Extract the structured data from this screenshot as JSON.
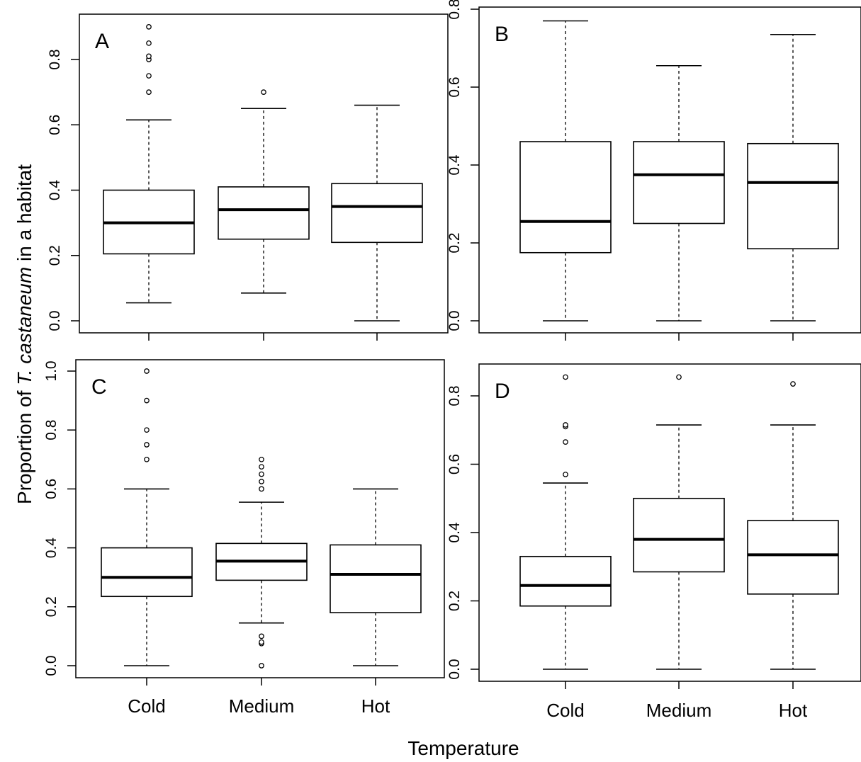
{
  "chart_data": {
    "type": "boxplot",
    "ylabel": {
      "before": "Proportion of ",
      "italic": "T. castaneum",
      "after": " in a habitat"
    },
    "xlabel": "Temperature",
    "categories": [
      "Cold",
      "Medium",
      "Hot"
    ],
    "panels": [
      {
        "id": "A",
        "label": "A",
        "ylim": [
          0,
          0.9
        ],
        "yticks": [
          "0.0",
          "0.2",
          "0.4",
          "0.6",
          "0.8"
        ],
        "show_category_labels": false,
        "boxes": [
          {
            "category": "Cold",
            "whisker_low": 0.055,
            "q1": 0.205,
            "median": 0.3,
            "q3": 0.4,
            "whisker_high": 0.615,
            "outliers": [
              0.7,
              0.75,
              0.8,
              0.81,
              0.85,
              0.9
            ]
          },
          {
            "category": "Medium",
            "whisker_low": 0.085,
            "q1": 0.25,
            "median": 0.34,
            "q3": 0.41,
            "whisker_high": 0.65,
            "outliers": [
              0.7
            ]
          },
          {
            "category": "Hot",
            "whisker_low": 0.0,
            "q1": 0.24,
            "median": 0.35,
            "q3": 0.42,
            "whisker_high": 0.66,
            "outliers": []
          }
        ]
      },
      {
        "id": "B",
        "label": "B",
        "ylim": [
          0,
          0.8
        ],
        "yticks": [
          "0.0",
          "0.2",
          "0.4",
          "0.6",
          "0.8"
        ],
        "show_category_labels": false,
        "boxes": [
          {
            "category": "Cold",
            "whisker_low": 0.0,
            "q1": 0.175,
            "median": 0.255,
            "q3": 0.46,
            "whisker_high": 0.77,
            "outliers": []
          },
          {
            "category": "Medium",
            "whisker_low": 0.0,
            "q1": 0.25,
            "median": 0.375,
            "q3": 0.46,
            "whisker_high": 0.655,
            "outliers": []
          },
          {
            "category": "Hot",
            "whisker_low": 0.0,
            "q1": 0.185,
            "median": 0.355,
            "q3": 0.455,
            "whisker_high": 0.735,
            "outliers": []
          }
        ]
      },
      {
        "id": "C",
        "label": "C",
        "ylim": [
          0,
          1.0
        ],
        "yticks": [
          "0.0",
          "0.2",
          "0.4",
          "0.6",
          "0.8",
          "1.0"
        ],
        "show_category_labels": true,
        "boxes": [
          {
            "category": "Cold",
            "whisker_low": 0.0,
            "q1": 0.235,
            "median": 0.3,
            "q3": 0.4,
            "whisker_high": 0.6,
            "outliers": [
              0.7,
              0.75,
              0.8,
              0.9,
              1.0
            ]
          },
          {
            "category": "Medium",
            "whisker_low": 0.145,
            "q1": 0.29,
            "median": 0.355,
            "q3": 0.415,
            "whisker_high": 0.555,
            "outliers": [
              0.0,
              0.075,
              0.08,
              0.1,
              0.6,
              0.625,
              0.65,
              0.675,
              0.7
            ]
          },
          {
            "category": "Hot",
            "whisker_low": 0.0,
            "q1": 0.18,
            "median": 0.31,
            "q3": 0.41,
            "whisker_high": 0.6,
            "outliers": []
          }
        ]
      },
      {
        "id": "D",
        "label": "D",
        "ylim": [
          0,
          0.85
        ],
        "yticks": [
          "0.0",
          "0.2",
          "0.4",
          "0.6",
          "0.8"
        ],
        "show_category_labels": true,
        "boxes": [
          {
            "category": "Cold",
            "whisker_low": 0.0,
            "q1": 0.185,
            "median": 0.245,
            "q3": 0.33,
            "whisker_high": 0.545,
            "outliers": [
              0.57,
              0.665,
              0.71,
              0.715,
              0.855
            ]
          },
          {
            "category": "Medium",
            "whisker_low": 0.0,
            "q1": 0.285,
            "median": 0.38,
            "q3": 0.5,
            "whisker_high": 0.715,
            "outliers": [
              0.855
            ]
          },
          {
            "category": "Hot",
            "whisker_low": 0.0,
            "q1": 0.22,
            "median": 0.335,
            "q3": 0.435,
            "whisker_high": 0.715,
            "outliers": [
              0.835
            ]
          }
        ]
      }
    ]
  }
}
